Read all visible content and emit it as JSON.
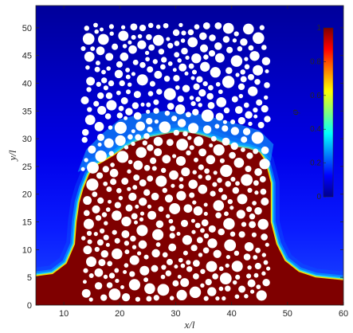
{
  "plot": {
    "xlabel": "x/l",
    "ylabel": "y/l",
    "x_range": [
      5,
      60
    ],
    "y_range": [
      0,
      54
    ],
    "x_ticks": [
      "10",
      "20",
      "30",
      "40",
      "50",
      "60"
    ],
    "y_ticks": [
      "0",
      "5",
      "10",
      "15",
      "20",
      "25",
      "30",
      "35",
      "40",
      "45",
      "50"
    ]
  },
  "colorbar": {
    "label": "φ",
    "range": [
      0,
      1
    ],
    "ticks": [
      "0",
      "0.2",
      "0.4",
      "0.6",
      "0.8",
      "1"
    ],
    "colormap": "jet"
  },
  "colors": {
    "background_deep": "#00008f",
    "background_blue": "#0000ff",
    "front_cyan": "#19d5ff",
    "front_yellow": "#ffd200",
    "saturated": "#7f0000",
    "grain": "#ffffff"
  },
  "image_content": {
    "grains_region_x": [
      13,
      47
    ],
    "grains_region_y": [
      0,
      51
    ],
    "saturated_front_height": 31,
    "bottom_pool_edge_height": 5
  }
}
